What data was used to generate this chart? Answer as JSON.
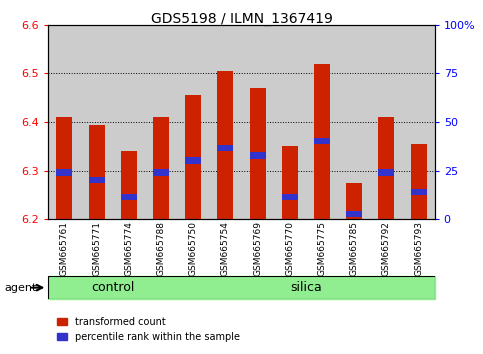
{
  "title": "GDS5198 / ILMN_1367419",
  "samples": [
    "GSM665761",
    "GSM665771",
    "GSM665774",
    "GSM665788",
    "GSM665750",
    "GSM665754",
    "GSM665769",
    "GSM665770",
    "GSM665775",
    "GSM665785",
    "GSM665792",
    "GSM665793"
  ],
  "groups": [
    "control",
    "control",
    "control",
    "control",
    "silica",
    "silica",
    "silica",
    "silica",
    "silica",
    "silica",
    "silica",
    "silica"
  ],
  "bar_values": [
    6.41,
    6.395,
    6.34,
    6.41,
    6.455,
    6.505,
    6.47,
    6.35,
    6.52,
    6.275,
    6.41,
    6.355
  ],
  "percentile_values": [
    6.29,
    6.275,
    6.24,
    6.29,
    6.315,
    6.34,
    6.325,
    6.24,
    6.355,
    6.205,
    6.29,
    6.25
  ],
  "ymin": 6.2,
  "ymax": 6.6,
  "bar_color": "#cc2200",
  "percentile_color": "#3333cc",
  "control_color": "#90ee90",
  "silica_color": "#90ee90",
  "tick_bg_color": "#cccccc",
  "bar_width": 0.5,
  "agent_label": "agent",
  "control_label": "control",
  "silica_label": "silica",
  "legend_red": "transformed count",
  "legend_blue": "percentile rank within the sample",
  "right_yticks": [
    0,
    25,
    50,
    75,
    100
  ],
  "right_ylabels": [
    "0",
    "25",
    "50",
    "75",
    "100%"
  ],
  "left_yticks": [
    6.2,
    6.3,
    6.4,
    6.5,
    6.6
  ],
  "grid_yticks": [
    6.3,
    6.4,
    6.5
  ],
  "plot_bg": "#ffffff",
  "fig_width": 4.83,
  "fig_height": 3.54,
  "dpi": 100
}
